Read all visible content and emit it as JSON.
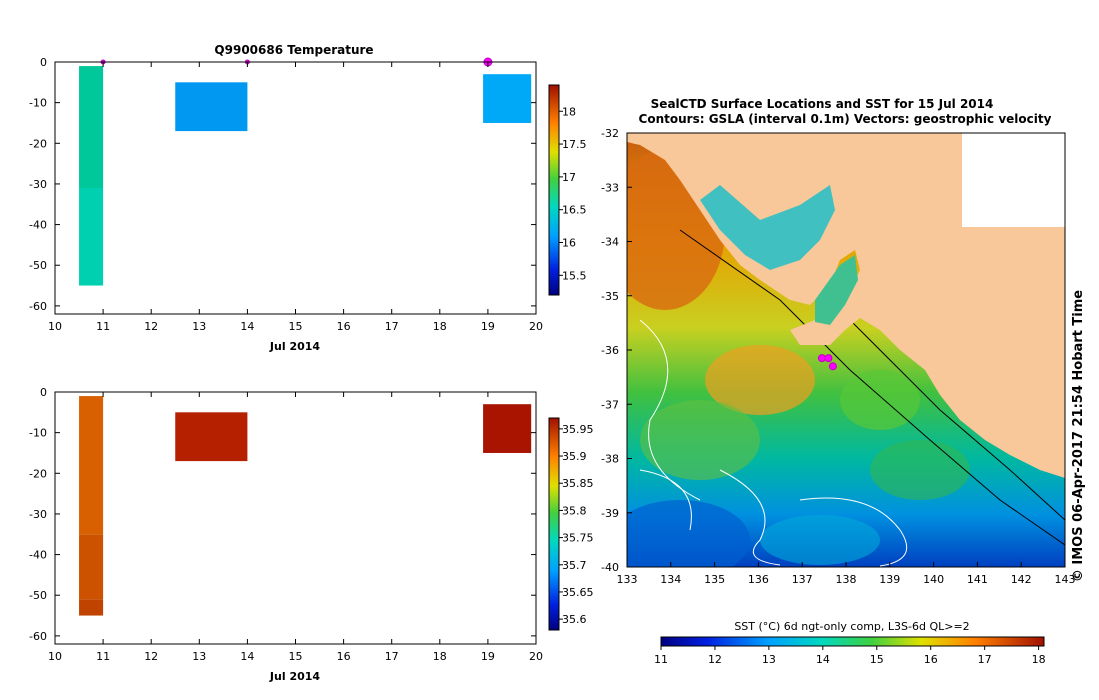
{
  "chart_data": [
    {
      "id": "temperature-profile",
      "type": "heatmap",
      "title": "Q9900686  Temperature",
      "xlabel": "Jul 2014",
      "xlim": [
        10,
        20
      ],
      "ylim": [
        -62,
        0
      ],
      "xticks": [
        "10",
        "11",
        "12",
        "13",
        "14",
        "15",
        "16",
        "17",
        "18",
        "19",
        "20"
      ],
      "yticks": [
        "0",
        "-10",
        "-20",
        "-30",
        "-40",
        "-50",
        "-60"
      ],
      "colorbar": {
        "ticks": [
          "15.5",
          "16",
          "16.5",
          "17",
          "17.5",
          "18"
        ],
        "min": 15.2,
        "max": 18.4
      },
      "profiles": [
        {
          "x0": 10.5,
          "x1": 11.0,
          "segments": [
            {
              "top": -1,
              "bottom": -31,
              "color": "#00c89a"
            },
            {
              "top": -31,
              "bottom": -55,
              "color": "#00d0b0"
            }
          ]
        },
        {
          "x0": 12.5,
          "x1": 14.0,
          "segments": [
            {
              "top": -5,
              "bottom": -17,
              "color": "#0098f0"
            }
          ]
        },
        {
          "x0": 18.9,
          "x1": 19.9,
          "segments": [
            {
              "top": -3,
              "bottom": -15,
              "color": "#00a8f8"
            }
          ]
        }
      ],
      "surface_markers": [
        {
          "x": 11,
          "big": false
        },
        {
          "x": 14,
          "big": false
        },
        {
          "x": 19,
          "big": true
        }
      ]
    },
    {
      "id": "salinity-profile",
      "type": "heatmap",
      "title": "",
      "xlabel": "Jul 2014",
      "xlim": [
        10,
        20
      ],
      "ylim": [
        -62,
        0
      ],
      "xticks": [
        "10",
        "11",
        "12",
        "13",
        "14",
        "15",
        "16",
        "17",
        "18",
        "19",
        "20"
      ],
      "yticks": [
        "0",
        "-10",
        "-20",
        "-30",
        "-40",
        "-50",
        "-60"
      ],
      "colorbar": {
        "ticks": [
          "35.6",
          "35.65",
          "35.7",
          "35.75",
          "35.8",
          "35.85",
          "35.9",
          "35.95"
        ],
        "min": 35.58,
        "max": 35.97
      },
      "profiles": [
        {
          "x0": 10.5,
          "x1": 11.0,
          "segments": [
            {
              "top": -1,
              "bottom": -35,
              "color": "#d86000"
            },
            {
              "top": -35,
              "bottom": -51,
              "color": "#cc5200"
            },
            {
              "top": -51,
              "bottom": -55,
              "color": "#c04400"
            }
          ]
        },
        {
          "x0": 12.5,
          "x1": 14.0,
          "segments": [
            {
              "top": -5,
              "bottom": -17,
              "color": "#b42000"
            }
          ]
        },
        {
          "x0": 18.9,
          "x1": 19.9,
          "segments": [
            {
              "top": -3,
              "bottom": -15,
              "color": "#a81400"
            }
          ]
        }
      ]
    },
    {
      "id": "sst-map",
      "type": "heatmap",
      "title": "SealCTD Surface Locations and SST for 15 Jul 2014",
      "subtitle": "Contours: GSLA (interval 0.1m) Vectors: geostrophic velocity",
      "xlim": [
        133,
        143
      ],
      "ylim": [
        -40,
        -32
      ],
      "xticks": [
        "133",
        "134",
        "135",
        "136",
        "137",
        "138",
        "139",
        "140",
        "141",
        "142",
        "143"
      ],
      "yticks": [
        "-32",
        "-33",
        "-34",
        "-35",
        "-36",
        "-37",
        "-38",
        "-39",
        "-40"
      ],
      "side_label": "© IMOS 06-Apr-2017 21:54 Hobart Time",
      "colorbar": {
        "label": "SST (°C) 6d ngt-only comp, L3S-6d QL>=2",
        "ticks": [
          "11",
          "12",
          "13",
          "14",
          "15",
          "16",
          "17",
          "18"
        ],
        "min": 11,
        "max": 18.1
      },
      "seal_locations": [
        {
          "lon": 137.45,
          "lat": -36.15
        },
        {
          "lon": 137.6,
          "lat": -36.15
        },
        {
          "lon": 137.7,
          "lat": -36.3
        }
      ]
    }
  ]
}
